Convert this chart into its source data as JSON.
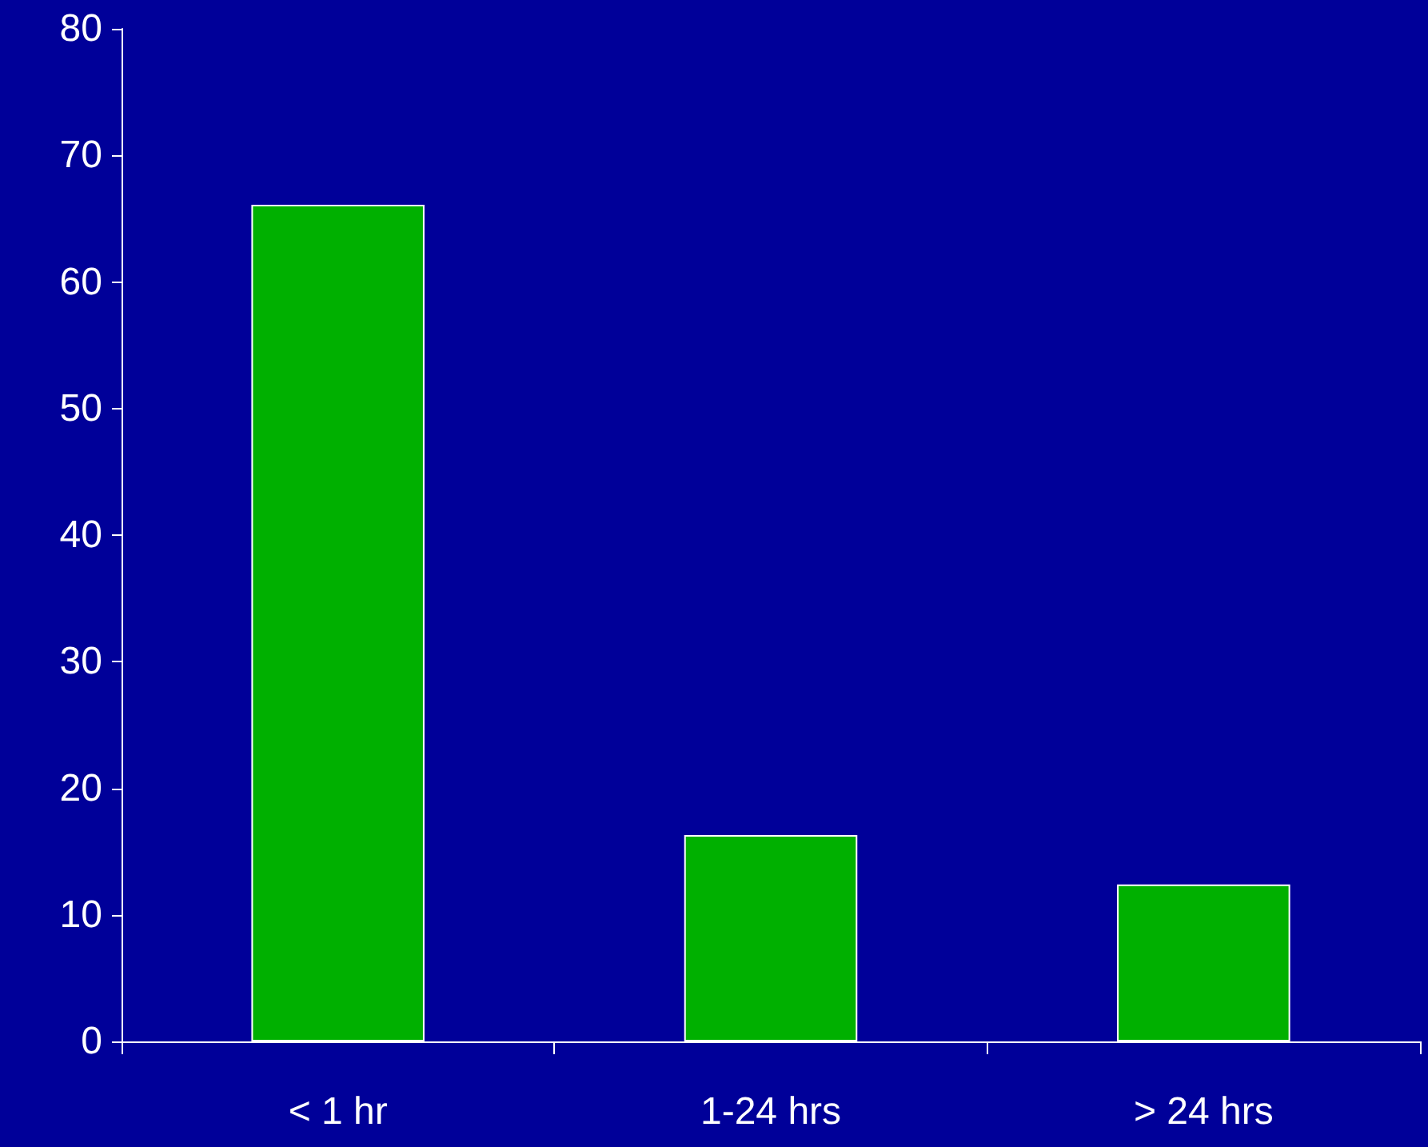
{
  "chart_data": {
    "type": "bar",
    "categories": [
      "< 1 hr",
      "1-24 hrs",
      "> 24 hrs"
    ],
    "values": [
      66.1,
      16.3,
      12.4
    ],
    "color": "#00b000",
    "ylim": [
      0,
      80
    ],
    "yticks": [
      0,
      10,
      20,
      30,
      40,
      50,
      60,
      70,
      80
    ],
    "grid": false
  }
}
